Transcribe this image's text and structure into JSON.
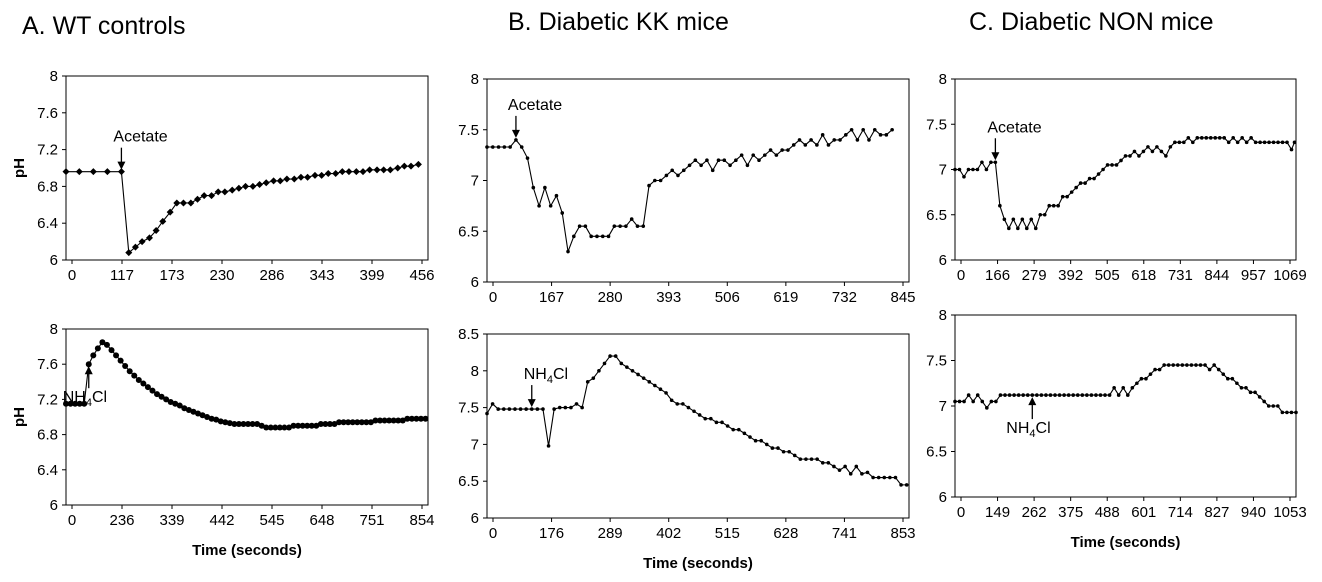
{
  "chart_data": [
    {
      "id": "A1",
      "type": "line",
      "title": "A. WT controls",
      "xlabel": "",
      "ylabel": "pH",
      "ylim": [
        6,
        8
      ],
      "yticks": [
        "6",
        "6.4",
        "6.8",
        "7.2",
        "7.6",
        "8"
      ],
      "xticks": [
        "0",
        "117",
        "173",
        "230",
        "286",
        "343",
        "399",
        "456"
      ],
      "xlim": [
        0,
        490
      ],
      "grid": false,
      "marker": "diamond",
      "series": [
        {
          "x": [
            0,
            18,
            37,
            56,
            75,
            85,
            94,
            103,
            113,
            122,
            131,
            141,
            150,
            159,
            169,
            178,
            187,
            197,
            206,
            215,
            225,
            234,
            243,
            253,
            262,
            271,
            281,
            290,
            299,
            309,
            318,
            327,
            337,
            346,
            355,
            365,
            374,
            383,
            393,
            402,
            411,
            421,
            430,
            439,
            449,
            458,
            467,
            477
          ],
          "y": [
            6.96,
            6.96,
            6.96,
            6.96,
            6.96,
            6.08,
            6.14,
            6.2,
            6.24,
            6.32,
            6.42,
            6.52,
            6.62,
            6.62,
            6.62,
            6.66,
            6.7,
            6.7,
            6.74,
            6.74,
            6.76,
            6.78,
            6.8,
            6.8,
            6.82,
            6.84,
            6.86,
            6.86,
            6.88,
            6.88,
            6.9,
            6.9,
            6.92,
            6.92,
            6.94,
            6.94,
            6.96,
            6.96,
            6.96,
            6.96,
            6.98,
            6.98,
            6.98,
            6.98,
            7.0,
            7.02,
            7.02,
            7.04
          ]
        }
      ],
      "annotations": [
        {
          "text": "Acetate",
          "x": 75
        }
      ]
    },
    {
      "id": "A2",
      "type": "line",
      "title": "",
      "xlabel": "Time (seconds)",
      "ylabel": "pH",
      "ylim": [
        6,
        8
      ],
      "yticks": [
        "6",
        "6.4",
        "6.8",
        "7.2",
        "7.6",
        "8"
      ],
      "xticks": [
        "0",
        "236",
        "339",
        "442",
        "545",
        "648",
        "751",
        "854"
      ],
      "xlim": [
        0,
        875
      ],
      "grid": false,
      "marker": "circle",
      "series": [
        {
          "x": [
            0,
            11,
            22,
            33,
            44,
            55,
            66,
            77,
            88,
            99,
            110,
            121,
            132,
            143,
            154,
            165,
            176,
            187,
            198,
            209,
            220,
            231,
            242,
            253,
            264,
            275,
            286,
            297,
            308,
            319,
            330,
            341,
            352,
            363,
            374,
            385,
            396,
            407,
            418,
            429,
            440,
            451,
            462,
            473,
            484,
            495,
            506,
            517,
            528,
            539,
            550,
            561,
            572,
            583,
            594,
            605,
            616,
            627,
            638,
            649,
            660,
            671,
            682,
            693,
            704,
            715,
            726,
            737,
            748,
            759,
            770,
            781,
            792,
            803,
            814,
            825,
            836,
            847,
            858,
            869
          ],
          "y": [
            7.15,
            7.15,
            7.15,
            7.15,
            7.15,
            7.6,
            7.7,
            7.78,
            7.85,
            7.82,
            7.76,
            7.7,
            7.64,
            7.58,
            7.52,
            7.47,
            7.42,
            7.38,
            7.34,
            7.3,
            7.26,
            7.23,
            7.2,
            7.17,
            7.15,
            7.13,
            7.1,
            7.08,
            7.06,
            7.04,
            7.02,
            7.0,
            6.98,
            6.97,
            6.95,
            6.94,
            6.93,
            6.92,
            6.92,
            6.92,
            6.92,
            6.92,
            6.92,
            6.9,
            6.88,
            6.88,
            6.88,
            6.88,
            6.88,
            6.88,
            6.9,
            6.9,
            6.9,
            6.9,
            6.9,
            6.9,
            6.92,
            6.92,
            6.92,
            6.92,
            6.94,
            6.94,
            6.94,
            6.94,
            6.94,
            6.94,
            6.94,
            6.94,
            6.96,
            6.96,
            6.96,
            6.96,
            6.96,
            6.96,
            6.96,
            6.98,
            6.98,
            6.98,
            6.98,
            6.98
          ]
        }
      ],
      "annotations": [
        {
          "text": "NH4Cl",
          "x": 50
        }
      ]
    },
    {
      "id": "B1",
      "type": "line",
      "title": "B. Diabetic KK mice",
      "xlabel": "",
      "ylabel": "",
      "ylim": [
        6,
        8
      ],
      "yticks": [
        "6",
        "6.5",
        "7",
        "7.5",
        "8"
      ],
      "xticks": [
        "0",
        "167",
        "280",
        "393",
        "506",
        "619",
        "732",
        "845"
      ],
      "xlim": [
        0,
        875
      ],
      "grid": false,
      "marker": "dot",
      "series": [
        {
          "x": [
            0,
            12,
            24,
            36,
            48,
            60,
            72,
            84,
            96,
            108,
            120,
            132,
            144,
            156,
            168,
            180,
            192,
            204,
            216,
            228,
            240,
            252,
            264,
            276,
            288,
            300,
            312,
            324,
            336,
            348,
            360,
            372,
            384,
            396,
            408,
            420,
            432,
            444,
            456,
            468,
            480,
            492,
            504,
            516,
            528,
            540,
            552,
            564,
            576,
            588,
            600,
            612,
            624,
            636,
            648,
            660,
            672,
            684,
            696,
            708,
            720,
            732,
            744,
            756,
            768,
            780,
            792,
            804,
            816,
            828,
            840
          ],
          "y": [
            7.33,
            7.33,
            7.33,
            7.33,
            7.33,
            7.4,
            7.33,
            7.22,
            6.93,
            6.75,
            6.93,
            6.75,
            6.85,
            6.68,
            6.3,
            6.45,
            6.55,
            6.55,
            6.45,
            6.45,
            6.45,
            6.45,
            6.55,
            6.55,
            6.55,
            6.62,
            6.55,
            6.55,
            6.95,
            7.0,
            7.0,
            7.05,
            7.1,
            7.05,
            7.1,
            7.15,
            7.2,
            7.15,
            7.2,
            7.1,
            7.2,
            7.2,
            7.15,
            7.2,
            7.25,
            7.15,
            7.25,
            7.2,
            7.25,
            7.3,
            7.25,
            7.3,
            7.3,
            7.35,
            7.4,
            7.35,
            7.4,
            7.35,
            7.45,
            7.35,
            7.4,
            7.4,
            7.45,
            7.5,
            7.4,
            7.5,
            7.4,
            7.5,
            7.45,
            7.45,
            7.5
          ]
        }
      ],
      "annotations": [
        {
          "text": "Acetate",
          "x": 60
        }
      ]
    },
    {
      "id": "B2",
      "type": "line",
      "title": "",
      "xlabel": "Time (seconds)",
      "ylabel": "",
      "ylim": [
        6,
        8.5
      ],
      "yticks": [
        "6",
        "6.5",
        "7",
        "7.5",
        "8",
        "8.5"
      ],
      "xticks": [
        "0",
        "176",
        "289",
        "402",
        "515",
        "628",
        "741",
        "853"
      ],
      "xlim": [
        0,
        905
      ],
      "grid": false,
      "marker": "dot",
      "series": [
        {
          "x": [
            0,
            12,
            24,
            36,
            48,
            60,
            72,
            84,
            96,
            108,
            120,
            132,
            144,
            156,
            168,
            180,
            192,
            204,
            216,
            228,
            240,
            252,
            264,
            276,
            288,
            300,
            312,
            324,
            336,
            348,
            360,
            372,
            384,
            396,
            408,
            420,
            432,
            444,
            456,
            468,
            480,
            492,
            504,
            516,
            528,
            540,
            552,
            564,
            576,
            588,
            600,
            612,
            624,
            636,
            648,
            660,
            672,
            684,
            696,
            708,
            720,
            732,
            744,
            756,
            768,
            780,
            792,
            804,
            816,
            828,
            840,
            852,
            864,
            876,
            888,
            900
          ],
          "y": [
            7.42,
            7.55,
            7.48,
            7.48,
            7.48,
            7.48,
            7.48,
            7.48,
            7.48,
            7.48,
            7.48,
            6.98,
            7.48,
            7.5,
            7.5,
            7.5,
            7.55,
            7.5,
            7.85,
            7.9,
            8.0,
            8.1,
            8.2,
            8.2,
            8.1,
            8.05,
            8.0,
            7.95,
            7.9,
            7.85,
            7.8,
            7.75,
            7.7,
            7.6,
            7.55,
            7.55,
            7.5,
            7.45,
            7.4,
            7.35,
            7.35,
            7.3,
            7.3,
            7.25,
            7.2,
            7.2,
            7.15,
            7.1,
            7.05,
            7.05,
            7.0,
            6.95,
            6.95,
            6.9,
            6.9,
            6.85,
            6.8,
            6.8,
            6.8,
            6.8,
            6.75,
            6.75,
            6.7,
            6.65,
            6.7,
            6.6,
            6.7,
            6.6,
            6.62,
            6.55,
            6.55,
            6.55,
            6.55,
            6.55,
            6.45,
            6.45
          ]
        }
      ],
      "annotations": [
        {
          "text": "NH4Cl",
          "x": 92
        }
      ]
    },
    {
      "id": "C1",
      "type": "line",
      "title": "C. Diabetic NON mice",
      "xlabel": "",
      "ylabel": "",
      "ylim": [
        6,
        8
      ],
      "yticks": [
        "6",
        "6.5",
        "7",
        "7.5",
        "8"
      ],
      "xticks": [
        "0",
        "166",
        "279",
        "392",
        "505",
        "618",
        "731",
        "844",
        "957",
        "1069"
      ],
      "xlim": [
        0,
        1140
      ],
      "grid": false,
      "marker": "dot",
      "series": [
        {
          "x": [
            0,
            15,
            30,
            45,
            60,
            75,
            90,
            105,
            120,
            135,
            150,
            165,
            180,
            195,
            210,
            225,
            240,
            255,
            270,
            285,
            300,
            315,
            330,
            345,
            360,
            375,
            390,
            405,
            420,
            435,
            450,
            465,
            480,
            495,
            510,
            525,
            540,
            555,
            570,
            585,
            600,
            615,
            630,
            645,
            660,
            675,
            690,
            705,
            720,
            735,
            750,
            765,
            780,
            795,
            810,
            825,
            840,
            855,
            870,
            885,
            900,
            915,
            930,
            945,
            960,
            975,
            990,
            1005,
            1020,
            1035,
            1050,
            1065,
            1080,
            1095,
            1110,
            1125,
            1135
          ],
          "y": [
            7.0,
            7.0,
            6.92,
            7.0,
            7.0,
            7.0,
            7.08,
            7.0,
            7.08,
            7.08,
            6.6,
            6.45,
            6.35,
            6.45,
            6.35,
            6.45,
            6.35,
            6.45,
            6.35,
            6.5,
            6.5,
            6.6,
            6.6,
            6.6,
            6.7,
            6.7,
            6.75,
            6.8,
            6.85,
            6.85,
            6.9,
            6.9,
            6.95,
            7.0,
            7.05,
            7.05,
            7.05,
            7.1,
            7.15,
            7.15,
            7.2,
            7.15,
            7.2,
            7.25,
            7.2,
            7.25,
            7.2,
            7.15,
            7.25,
            7.3,
            7.3,
            7.3,
            7.35,
            7.3,
            7.35,
            7.35,
            7.35,
            7.35,
            7.35,
            7.35,
            7.35,
            7.3,
            7.35,
            7.3,
            7.35,
            7.3,
            7.35,
            7.3,
            7.3,
            7.3,
            7.3,
            7.3,
            7.3,
            7.3,
            7.3,
            7.22,
            7.3
          ]
        }
      ],
      "annotations": [
        {
          "text": "Acetate",
          "x": 135
        }
      ]
    },
    {
      "id": "C2",
      "type": "line",
      "title": "",
      "xlabel": "Time (seconds)",
      "ylabel": "",
      "ylim": [
        6,
        8
      ],
      "yticks": [
        "6",
        "6.5",
        "7",
        "7.5",
        "8"
      ],
      "xticks": [
        "0",
        "149",
        "262",
        "375",
        "488",
        "601",
        "714",
        "827",
        "940",
        "1053"
      ],
      "xlim": [
        0,
        1125
      ],
      "grid": false,
      "marker": "dot",
      "series": [
        {
          "x": [
            0,
            15,
            30,
            45,
            60,
            75,
            90,
            105,
            120,
            135,
            150,
            165,
            180,
            195,
            210,
            225,
            240,
            255,
            270,
            285,
            300,
            315,
            330,
            345,
            360,
            375,
            390,
            405,
            420,
            435,
            450,
            465,
            480,
            495,
            510,
            525,
            540,
            555,
            570,
            585,
            600,
            615,
            630,
            645,
            660,
            675,
            690,
            705,
            720,
            735,
            750,
            765,
            780,
            795,
            810,
            825,
            840,
            855,
            870,
            885,
            900,
            915,
            930,
            945,
            960,
            975,
            990,
            1005,
            1020,
            1035,
            1050,
            1065,
            1080,
            1095,
            1110,
            1125
          ],
          "y": [
            7.05,
            7.05,
            7.05,
            7.12,
            7.05,
            7.12,
            7.05,
            6.98,
            7.05,
            7.05,
            7.12,
            7.12,
            7.12,
            7.12,
            7.12,
            7.12,
            7.12,
            7.12,
            7.12,
            7.12,
            7.12,
            7.12,
            7.12,
            7.12,
            7.12,
            7.12,
            7.12,
            7.12,
            7.12,
            7.12,
            7.12,
            7.12,
            7.12,
            7.12,
            7.12,
            7.2,
            7.12,
            7.2,
            7.12,
            7.2,
            7.25,
            7.3,
            7.3,
            7.35,
            7.4,
            7.4,
            7.45,
            7.45,
            7.45,
            7.45,
            7.45,
            7.45,
            7.45,
            7.45,
            7.45,
            7.45,
            7.4,
            7.45,
            7.4,
            7.35,
            7.3,
            7.3,
            7.25,
            7.2,
            7.2,
            7.15,
            7.15,
            7.1,
            7.05,
            7.0,
            7.0,
            7.0,
            6.93,
            6.93,
            6.93,
            6.93
          ]
        }
      ],
      "annotations": [
        {
          "text": "NH4Cl",
          "x": 248
        }
      ]
    }
  ]
}
